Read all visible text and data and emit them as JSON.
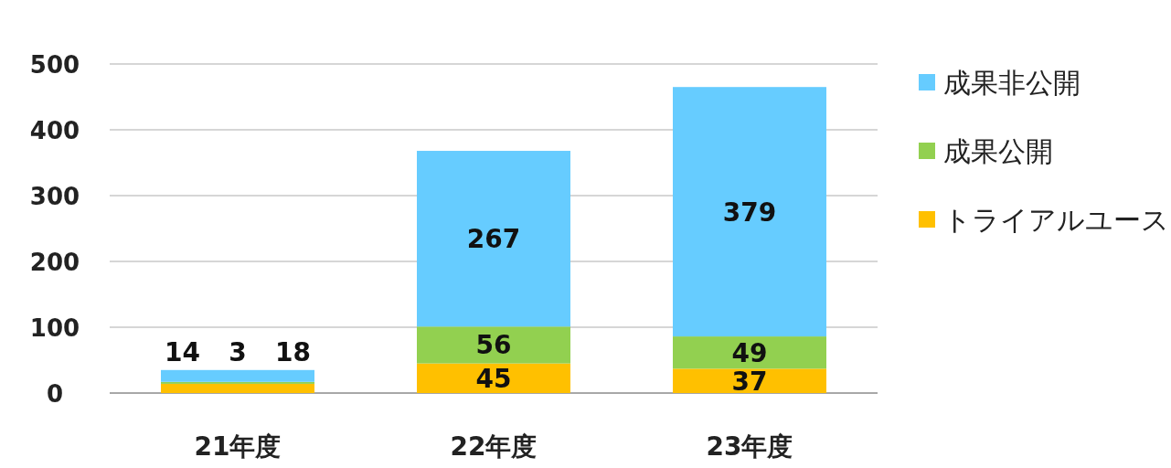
{
  "chart_data": {
    "type": "bar",
    "stacked": true,
    "categories": [
      "21年度",
      "22年度",
      "23年度"
    ],
    "series": [
      {
        "name": "トライアルユース",
        "color": "#ffc000",
        "values": [
          14,
          45,
          37
        ]
      },
      {
        "name": "成果公開",
        "color": "#92d050",
        "values": [
          3,
          56,
          49
        ]
      },
      {
        "name": "成果非公開",
        "color": "#66ccff",
        "values": [
          18,
          267,
          379
        ]
      }
    ],
    "ylim": [
      0,
      500
    ],
    "yticks": [
      0,
      100,
      200,
      300,
      400,
      500
    ],
    "grid": "y",
    "legend": "right",
    "data_labels": true
  }
}
